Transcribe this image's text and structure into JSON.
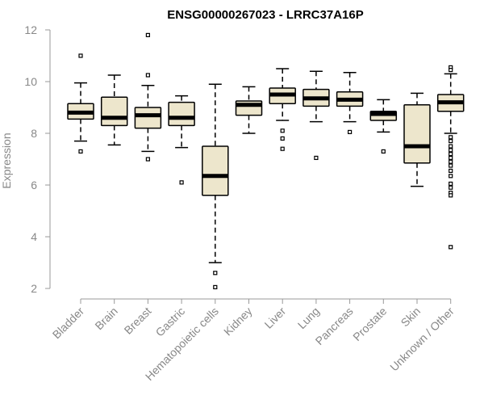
{
  "chart_data": {
    "type": "boxplot",
    "title": "ENSG00000267023 - LRRC37A16P",
    "ylabel": "Expression",
    "xlabel": "",
    "ylim": [
      2,
      12
    ],
    "yticks": [
      2,
      4,
      6,
      8,
      10,
      12
    ],
    "ytick_labels": [
      "2",
      "4",
      "6",
      "8",
      "10",
      "12"
    ],
    "box_fill": "#ede6cc",
    "box_stroke": "#000000",
    "grid": false,
    "categories": [
      "Bladder",
      "Brain",
      "Breast",
      "Gastric",
      "Hematopoietic cells",
      "Kidney",
      "Liver",
      "Lung",
      "Pancreas",
      "Prostate",
      "Skin",
      "Unknown / Other"
    ],
    "boxes": [
      {
        "category": "Bladder",
        "whisker_low": 7.7,
        "q1": 8.55,
        "median": 8.8,
        "q3": 9.15,
        "whisker_high": 9.95,
        "outliers": [
          11.0,
          7.3
        ]
      },
      {
        "category": "Brain",
        "whisker_low": 7.55,
        "q1": 8.3,
        "median": 8.6,
        "q3": 9.4,
        "whisker_high": 10.25,
        "outliers": []
      },
      {
        "category": "Breast",
        "whisker_low": 7.3,
        "q1": 8.2,
        "median": 8.7,
        "q3": 9.0,
        "whisker_high": 9.85,
        "outliers": [
          11.8,
          10.25,
          7.0
        ]
      },
      {
        "category": "Gastric",
        "whisker_low": 7.45,
        "q1": 8.3,
        "median": 8.6,
        "q3": 9.2,
        "whisker_high": 9.45,
        "outliers": [
          6.1
        ]
      },
      {
        "category": "Hematopoietic cells",
        "whisker_low": 3.0,
        "q1": 5.6,
        "median": 6.35,
        "q3": 7.5,
        "whisker_high": 9.9,
        "outliers": [
          2.6,
          2.05
        ]
      },
      {
        "category": "Kidney",
        "whisker_low": 8.0,
        "q1": 8.7,
        "median": 9.1,
        "q3": 9.25,
        "whisker_high": 9.8,
        "outliers": []
      },
      {
        "category": "Liver",
        "whisker_low": 8.5,
        "q1": 9.15,
        "median": 9.5,
        "q3": 9.75,
        "whisker_high": 10.5,
        "outliers": [
          8.1,
          7.8,
          7.4
        ]
      },
      {
        "category": "Lung",
        "whisker_low": 8.45,
        "q1": 9.05,
        "median": 9.35,
        "q3": 9.7,
        "whisker_high": 10.4,
        "outliers": [
          7.05
        ]
      },
      {
        "category": "Pancreas",
        "whisker_low": 8.45,
        "q1": 9.05,
        "median": 9.3,
        "q3": 9.6,
        "whisker_high": 10.35,
        "outliers": [
          8.05
        ]
      },
      {
        "category": "Prostate",
        "whisker_low": 8.05,
        "q1": 8.5,
        "median": 8.75,
        "q3": 8.85,
        "whisker_high": 9.3,
        "outliers": [
          7.3
        ]
      },
      {
        "category": "Skin",
        "whisker_low": 5.95,
        "q1": 6.85,
        "median": 7.5,
        "q3": 9.1,
        "whisker_high": 9.55,
        "outliers": []
      },
      {
        "category": "Unknown / Other",
        "whisker_low": 8.0,
        "q1": 8.85,
        "median": 9.2,
        "q3": 9.5,
        "whisker_high": 10.3,
        "outliers": [
          10.55,
          10.45,
          7.85,
          7.7,
          7.5,
          7.35,
          7.2,
          7.05,
          6.9,
          6.75,
          6.55,
          6.35,
          6.05,
          5.9,
          5.7,
          5.6,
          3.6
        ]
      }
    ]
  }
}
